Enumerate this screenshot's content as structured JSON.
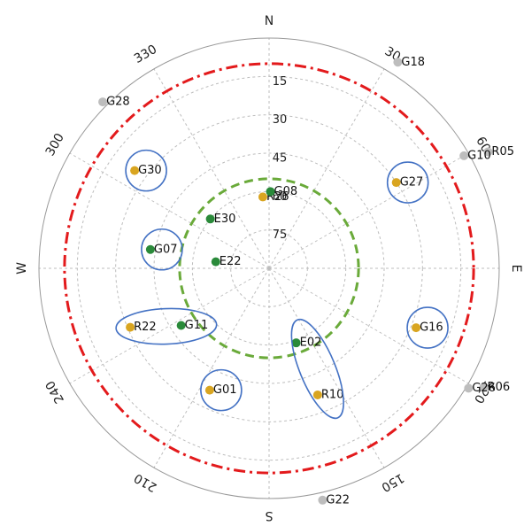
{
  "skyplot": {
    "azimuth_labels": [
      {
        "az": 0,
        "text": "N"
      },
      {
        "az": 30,
        "text": "30"
      },
      {
        "az": 60,
        "text": "60"
      },
      {
        "az": 90,
        "text": "E"
      },
      {
        "az": 120,
        "text": "120"
      },
      {
        "az": 150,
        "text": "150"
      },
      {
        "az": 180,
        "text": "S"
      },
      {
        "az": 210,
        "text": "210"
      },
      {
        "az": 240,
        "text": "240"
      },
      {
        "az": 270,
        "text": "W"
      },
      {
        "az": 300,
        "text": "300"
      },
      {
        "az": 330,
        "text": "330"
      }
    ],
    "elevation_labels": [
      "15",
      "30",
      "45",
      "60",
      "75"
    ],
    "elevation_rings": [
      0,
      15,
      30,
      45,
      60,
      75
    ],
    "mask_red_elevation": 10,
    "mask_green_elevation": 55,
    "colors": {
      "grid": "#bdbdbd",
      "outer": "#999999",
      "red_mask": "#e31a1c",
      "green_mask": "#6aaa3a",
      "highlight": "#4472c4",
      "gray_sat": "#bdbdbd",
      "orange_sat": "#d9a520",
      "green_sat": "#2a8a3a"
    },
    "satellites": [
      {
        "id": "G18",
        "az": 32,
        "el": -5,
        "color": "gray_sat"
      },
      {
        "id": "G28",
        "az": 315,
        "el": -2,
        "color": "gray_sat"
      },
      {
        "id": "R05",
        "az": 62,
        "el": -7,
        "color": "gray_sat"
      },
      {
        "id": "G10",
        "az": 60,
        "el": 2,
        "color": "gray_sat"
      },
      {
        "id": "R06",
        "az": 119,
        "el": -6,
        "color": "gray_sat"
      },
      {
        "id": "G26",
        "az": 121,
        "el": -1,
        "color": "gray_sat"
      },
      {
        "id": "G22",
        "az": 167,
        "el": -3,
        "color": "gray_sat"
      },
      {
        "id": "G30",
        "az": 306,
        "el": 25,
        "color": "orange_sat"
      },
      {
        "id": "G27",
        "az": 56,
        "el": 30,
        "color": "orange_sat"
      },
      {
        "id": "R26",
        "az": 355,
        "el": 62,
        "color": "orange_sat"
      },
      {
        "id": "R22",
        "az": 247,
        "el": 31,
        "color": "orange_sat"
      },
      {
        "id": "G16",
        "az": 112,
        "el": 28,
        "color": "orange_sat"
      },
      {
        "id": "G01",
        "az": 206,
        "el": 37,
        "color": "orange_sat"
      },
      {
        "id": "R10",
        "az": 159,
        "el": 37,
        "color": "orange_sat"
      },
      {
        "id": "G08",
        "az": 1,
        "el": 60,
        "color": "green_sat"
      },
      {
        "id": "E30",
        "az": 310,
        "el": 60,
        "color": "green_sat"
      },
      {
        "id": "G07",
        "az": 279,
        "el": 43,
        "color": "green_sat"
      },
      {
        "id": "E22",
        "az": 277,
        "el": 69,
        "color": "green_sat"
      },
      {
        "id": "G11",
        "az": 237,
        "el": 49,
        "color": "green_sat"
      },
      {
        "id": "E02",
        "az": 160,
        "el": 59,
        "color": "green_sat"
      }
    ],
    "highlight_circles": [
      {
        "center_of": "G30"
      },
      {
        "center_of": "G27"
      },
      {
        "center_of": "G07"
      },
      {
        "center_of": "G16"
      },
      {
        "center_of": "G01"
      }
    ],
    "highlight_ellipses": [
      {
        "members": [
          "R22",
          "G11"
        ]
      },
      {
        "members": [
          "E02",
          "R10"
        ]
      }
    ]
  }
}
